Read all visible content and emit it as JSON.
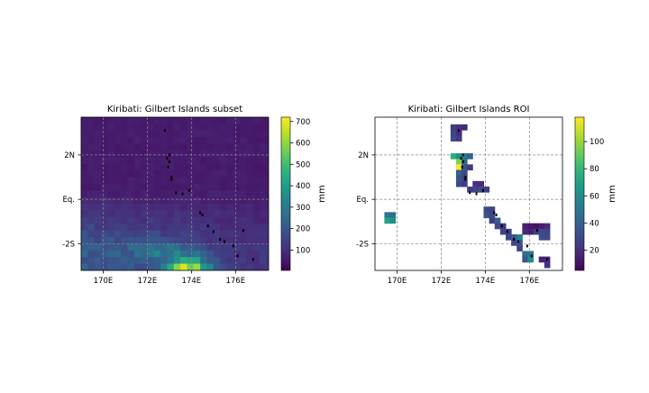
{
  "colormap": {
    "name": "viridis",
    "stops": [
      "#440154",
      "#482878",
      "#3e4989",
      "#31688e",
      "#26828e",
      "#1f9e89",
      "#35b779",
      "#6ece58",
      "#b5de2b",
      "#fde725"
    ]
  },
  "colors": {
    "grid": "#888888",
    "coast": "#000000",
    "axes_background": "#ffffff"
  },
  "chart_data": [
    {
      "type": "heatmap",
      "title": "Kiribati: Gilbert Islands subset",
      "xlim": [
        169,
        177.5
      ],
      "ylim": [
        -3.2,
        3.7
      ],
      "xticks": [
        170,
        172,
        174,
        176
      ],
      "xtick_labels": [
        "170E",
        "172E",
        "174E",
        "176E"
      ],
      "yticks": [
        2,
        0,
        -2
      ],
      "ytick_labels": [
        "2N",
        "Eq.",
        "-2S"
      ],
      "grid": true,
      "colorbar": {
        "label": "mm",
        "vmin": 5,
        "vmax": 720,
        "ticks": [
          100,
          200,
          300,
          400,
          500,
          600,
          700
        ],
        "tick_labels": [
          "100",
          "200",
          "300",
          "400",
          "500",
          "600",
          "700"
        ]
      },
      "values_mm": {
        "background_north": 60,
        "background_south": 190,
        "peak_max": 720,
        "peak_location": [
          173.7,
          -3.0
        ]
      }
    },
    {
      "type": "heatmap",
      "title": "Kiribati: Gilbert Islands ROI",
      "xlim": [
        169,
        177.5
      ],
      "ylim": [
        -3.2,
        3.7
      ],
      "xticks": [
        170,
        172,
        174,
        176
      ],
      "xtick_labels": [
        "170E",
        "172E",
        "174E",
        "176E"
      ],
      "yticks": [
        2,
        0,
        -2
      ],
      "ytick_labels": [
        "2N",
        "Eq.",
        "-2S"
      ],
      "grid": true,
      "colorbar": {
        "label": "mm",
        "vmin": 5,
        "vmax": 118,
        "ticks": [
          20,
          40,
          60,
          80,
          100
        ],
        "tick_labels": [
          "20",
          "40",
          "60",
          "80",
          "100"
        ]
      },
      "cells": [
        {
          "lon": 172.55,
          "lat": 3.25,
          "mm": 25
        },
        {
          "lon": 172.8,
          "lat": 3.25,
          "mm": 22
        },
        {
          "lon": 173.05,
          "lat": 3.25,
          "mm": 18
        },
        {
          "lon": 172.55,
          "lat": 3.0,
          "mm": 28
        },
        {
          "lon": 172.8,
          "lat": 3.0,
          "mm": 20
        },
        {
          "lon": 172.55,
          "lat": 2.75,
          "mm": 30
        },
        {
          "lon": 172.8,
          "lat": 2.75,
          "mm": 25
        },
        {
          "lon": 172.55,
          "lat": 1.95,
          "mm": 75
        },
        {
          "lon": 172.8,
          "lat": 1.95,
          "mm": 60
        },
        {
          "lon": 173.05,
          "lat": 1.95,
          "mm": 50
        },
        {
          "lon": 173.3,
          "lat": 1.95,
          "mm": 40
        },
        {
          "lon": 172.8,
          "lat": 1.7,
          "mm": 95
        },
        {
          "lon": 173.05,
          "lat": 1.7,
          "mm": 45
        },
        {
          "lon": 172.8,
          "lat": 1.45,
          "mm": 118
        },
        {
          "lon": 173.05,
          "lat": 1.45,
          "mm": 35
        },
        {
          "lon": 173.3,
          "lat": 1.45,
          "mm": 25
        },
        {
          "lon": 172.8,
          "lat": 1.2,
          "mm": 40
        },
        {
          "lon": 173.05,
          "lat": 1.2,
          "mm": 30
        },
        {
          "lon": 172.8,
          "lat": 0.95,
          "mm": 35
        },
        {
          "lon": 173.05,
          "lat": 0.95,
          "mm": 28
        },
        {
          "lon": 172.8,
          "lat": 0.7,
          "mm": 30
        },
        {
          "lon": 173.05,
          "lat": 0.7,
          "mm": 25
        },
        {
          "lon": 173.55,
          "lat": 0.7,
          "mm": 22
        },
        {
          "lon": 173.8,
          "lat": 0.7,
          "mm": 20
        },
        {
          "lon": 173.3,
          "lat": 0.45,
          "mm": 25
        },
        {
          "lon": 173.55,
          "lat": 0.45,
          "mm": 28
        },
        {
          "lon": 173.8,
          "lat": 0.45,
          "mm": 30
        },
        {
          "lon": 174.05,
          "lat": 0.45,
          "mm": 26
        },
        {
          "lon": 169.55,
          "lat": -0.7,
          "mm": 50
        },
        {
          "lon": 169.8,
          "lat": -0.7,
          "mm": 45
        },
        {
          "lon": 169.55,
          "lat": -0.95,
          "mm": 70
        },
        {
          "lon": 169.8,
          "lat": -0.95,
          "mm": 60
        },
        {
          "lon": 174.05,
          "lat": -0.45,
          "mm": 30
        },
        {
          "lon": 174.3,
          "lat": -0.45,
          "mm": 28
        },
        {
          "lon": 174.05,
          "lat": -0.7,
          "mm": 35
        },
        {
          "lon": 174.3,
          "lat": -0.7,
          "mm": 30
        },
        {
          "lon": 174.3,
          "lat": -0.95,
          "mm": 25
        },
        {
          "lon": 174.55,
          "lat": -0.95,
          "mm": 38
        },
        {
          "lon": 174.55,
          "lat": -1.2,
          "mm": 30
        },
        {
          "lon": 174.8,
          "lat": -1.2,
          "mm": 22
        },
        {
          "lon": 174.8,
          "lat": -1.45,
          "mm": 28
        },
        {
          "lon": 175.05,
          "lat": -1.45,
          "mm": 25
        },
        {
          "lon": 175.05,
          "lat": -1.7,
          "mm": 30
        },
        {
          "lon": 175.3,
          "lat": -1.7,
          "mm": 35
        },
        {
          "lon": 175.55,
          "lat": -1.7,
          "mm": 55
        },
        {
          "lon": 175.3,
          "lat": -1.95,
          "mm": 30
        },
        {
          "lon": 175.55,
          "lat": -1.95,
          "mm": 35
        },
        {
          "lon": 175.55,
          "lat": -2.2,
          "mm": 28
        },
        {
          "lon": 175.8,
          "lat": -1.2,
          "mm": 15
        },
        {
          "lon": 176.05,
          "lat": -1.2,
          "mm": 12
        },
        {
          "lon": 176.3,
          "lat": -1.2,
          "mm": 10
        },
        {
          "lon": 176.55,
          "lat": -1.2,
          "mm": 14
        },
        {
          "lon": 176.8,
          "lat": -1.2,
          "mm": 18
        },
        {
          "lon": 175.8,
          "lat": -1.45,
          "mm": 18
        },
        {
          "lon": 176.05,
          "lat": -1.45,
          "mm": 15
        },
        {
          "lon": 176.3,
          "lat": -1.45,
          "mm": 25
        },
        {
          "lon": 176.55,
          "lat": -1.45,
          "mm": 30
        },
        {
          "lon": 176.8,
          "lat": -1.45,
          "mm": 28
        },
        {
          "lon": 176.55,
          "lat": -1.7,
          "mm": 32
        },
        {
          "lon": 176.8,
          "lat": -1.7,
          "mm": 30
        },
        {
          "lon": 175.8,
          "lat": -2.45,
          "mm": 45
        },
        {
          "lon": 176.05,
          "lat": -2.45,
          "mm": 50
        },
        {
          "lon": 175.8,
          "lat": -2.7,
          "mm": 35
        },
        {
          "lon": 176.05,
          "lat": -2.7,
          "mm": 60
        },
        {
          "lon": 176.55,
          "lat": -2.7,
          "mm": 15
        },
        {
          "lon": 176.8,
          "lat": -2.7,
          "mm": 18
        },
        {
          "lon": 176.8,
          "lat": -2.95,
          "mm": 20
        }
      ]
    }
  ]
}
